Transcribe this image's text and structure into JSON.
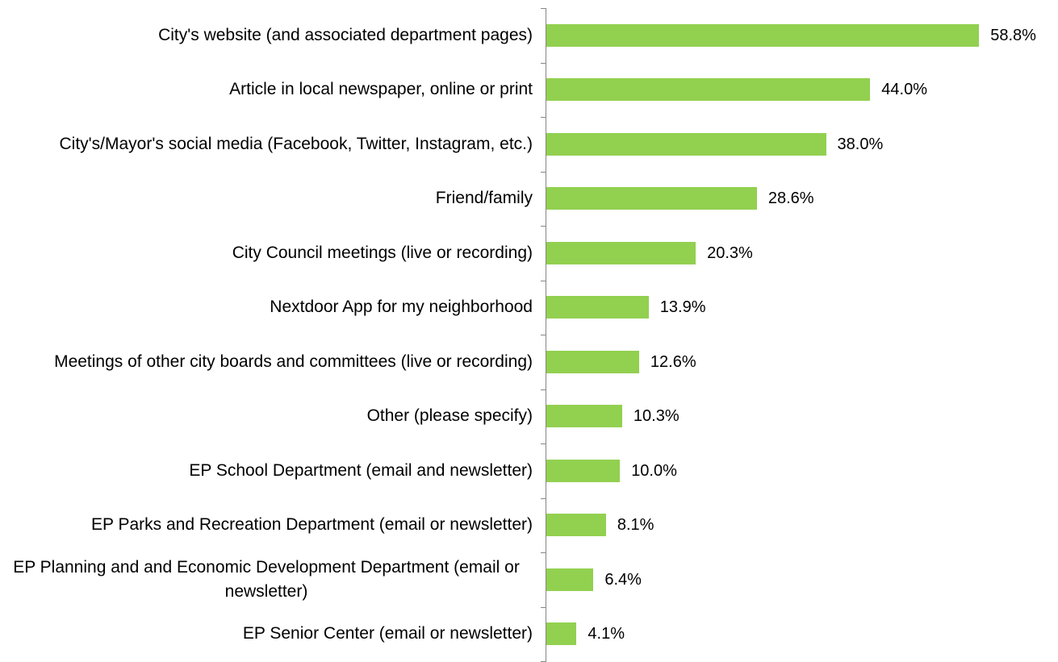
{
  "chart_data": {
    "type": "bar",
    "orientation": "horizontal",
    "color": "#92d050",
    "categories": [
      "City's website (and associated department pages)",
      "Article in local newspaper, online or print",
      "City's/Mayor's social media (Facebook, Twitter, Instagram, etc.)",
      "Friend/family",
      "City Council meetings (live or recording)",
      "Nextdoor App for my neighborhood",
      "Meetings of other city boards and committees (live or recording)",
      "Other (please specify)",
      "EP School Department (email and newsletter)",
      "EP Parks and Recreation Department (email or newsletter)",
      "EP Planning and and Economic Development Department (email or newsletter)",
      "EP Senior Center (email or newsletter)"
    ],
    "values": [
      58.8,
      44.0,
      38.0,
      28.6,
      20.3,
      13.9,
      12.6,
      10.3,
      10.0,
      8.1,
      6.4,
      4.1
    ],
    "value_labels": [
      "58.8%",
      "44.0%",
      "38.0%",
      "28.6%",
      "20.3%",
      "13.9%",
      "12.6%",
      "10.3%",
      "10.0%",
      "8.1%",
      "6.4%",
      "4.1%"
    ]
  }
}
